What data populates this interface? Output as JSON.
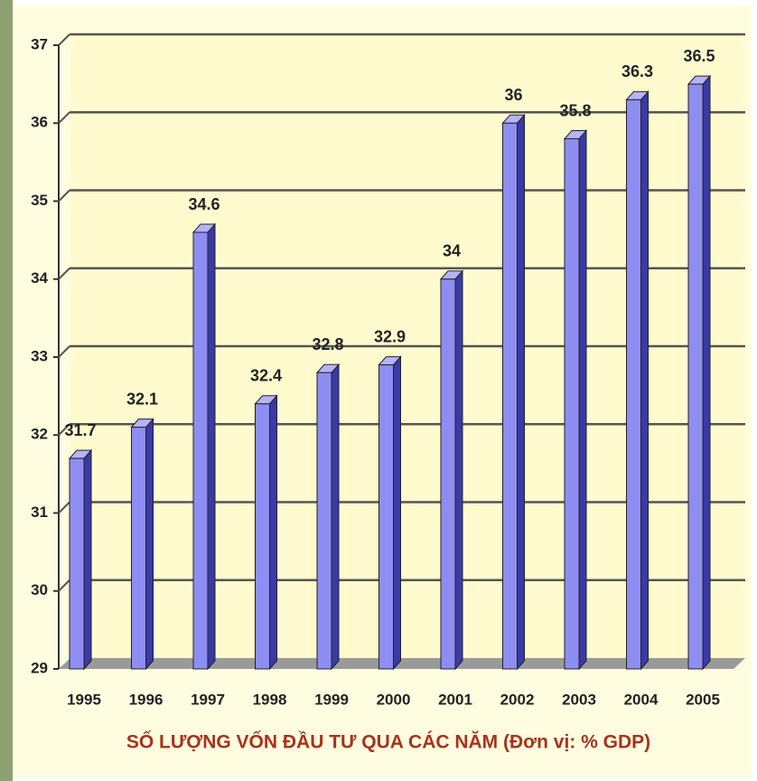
{
  "chart_data": {
    "type": "bar",
    "x_label": "SỐ LƯỢNG VỐN ĐẦU TƯ QUA CÁC NĂM (Đơn vị: % GDP)",
    "categories": [
      "1995",
      "1996",
      "1997",
      "1998",
      "1999",
      "2000",
      "2001",
      "2002",
      "2003",
      "2004",
      "2005"
    ],
    "values": [
      31.7,
      32.1,
      34.6,
      32.4,
      32.8,
      32.9,
      34,
      36,
      35.8,
      36.3,
      36.5
    ],
    "color": "#8e8ef2",
    "ylim": [
      29,
      37
    ],
    "yticks": [
      29,
      30,
      31,
      32,
      33,
      34,
      35,
      36,
      37
    ],
    "grid": true
  }
}
